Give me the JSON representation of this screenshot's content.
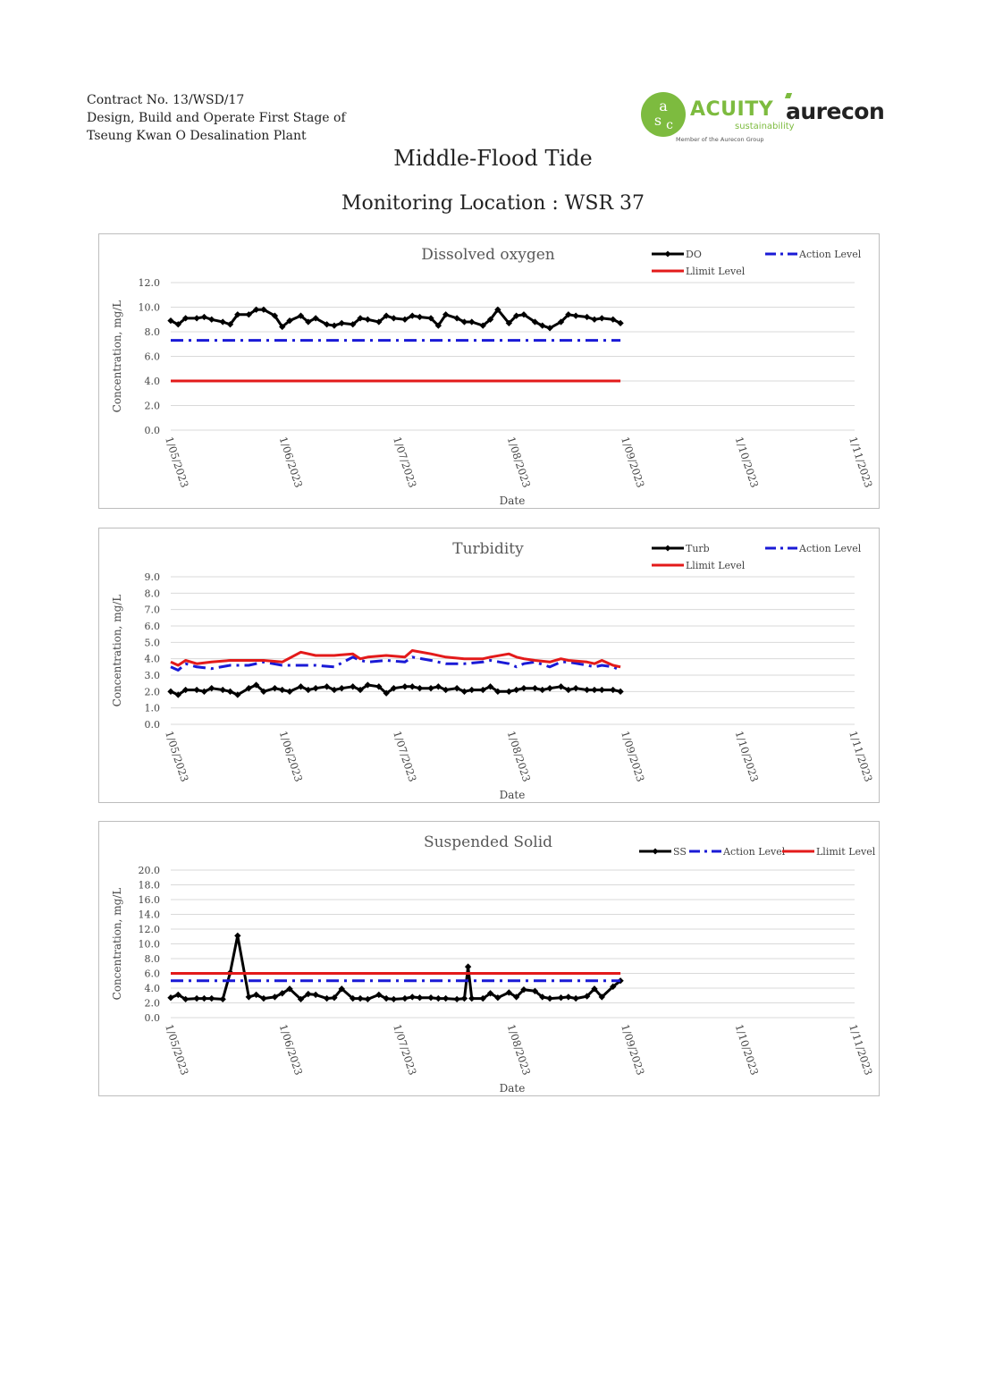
{
  "header": {
    "line1": "Contract No. 13/WSD/17",
    "line2": "Design, Build and Operate First Stage of",
    "line3": "Tseung Kwan O Desalination Plant"
  },
  "logos": {
    "acuity": "ACUITY",
    "acuity_sub": "sustainability",
    "acuity_member": "Member of the Aurecon Group",
    "aurecon": "aurecon",
    "brand_green": "#7dbb3f"
  },
  "title": "Middle-Flood Tide",
  "subtitle": "Monitoring Location : WSR 37",
  "chart_data": [
    {
      "type": "line",
      "title": "Dissolved oxygen",
      "xlabel": "Date",
      "ylabel": "Concentration, mg/L",
      "ylim": [
        0,
        12
      ],
      "yticks": [
        "0.0",
        "2.0",
        "4.0",
        "6.0",
        "8.0",
        "10.0",
        "12.0"
      ],
      "xlim": [
        "2023-05-01",
        "2023-11-01"
      ],
      "xticks": [
        "1/05/2023",
        "1/06/2023",
        "1/07/2023",
        "1/08/2023",
        "1/09/2023",
        "1/10/2023",
        "1/11/2023"
      ],
      "grid": true,
      "legend": "top-right",
      "series": [
        {
          "name": "DO",
          "color": "#000000",
          "style": "solid-marker",
          "x": [
            "2023-05-01",
            "2023-05-03",
            "2023-05-05",
            "2023-05-08",
            "2023-05-10",
            "2023-05-12",
            "2023-05-15",
            "2023-05-17",
            "2023-05-19",
            "2023-05-22",
            "2023-05-24",
            "2023-05-26",
            "2023-05-29",
            "2023-05-31",
            "2023-06-02",
            "2023-06-05",
            "2023-06-07",
            "2023-06-09",
            "2023-06-12",
            "2023-06-14",
            "2023-06-16",
            "2023-06-19",
            "2023-06-21",
            "2023-06-23",
            "2023-06-26",
            "2023-06-28",
            "2023-06-30",
            "2023-07-03",
            "2023-07-05",
            "2023-07-07",
            "2023-07-10",
            "2023-07-12",
            "2023-07-14",
            "2023-07-17",
            "2023-07-19",
            "2023-07-21",
            "2023-07-24",
            "2023-07-26",
            "2023-07-28",
            "2023-07-31",
            "2023-08-02",
            "2023-08-04",
            "2023-08-07",
            "2023-08-09",
            "2023-08-11",
            "2023-08-14",
            "2023-08-16",
            "2023-08-18",
            "2023-08-21",
            "2023-08-23",
            "2023-08-25",
            "2023-08-28",
            "2023-08-30"
          ],
          "values": [
            8.9,
            8.6,
            9.1,
            9.1,
            9.2,
            9.0,
            8.8,
            8.6,
            9.4,
            9.4,
            9.8,
            9.8,
            9.3,
            8.4,
            8.9,
            9.3,
            8.8,
            9.1,
            8.6,
            8.5,
            8.7,
            8.6,
            9.1,
            9.0,
            8.8,
            9.3,
            9.1,
            9.0,
            9.3,
            9.2,
            9.1,
            8.5,
            9.4,
            9.1,
            8.8,
            8.8,
            8.5,
            9.0,
            9.8,
            8.7,
            9.3,
            9.4,
            8.8,
            8.5,
            8.3,
            8.8,
            9.4,
            9.3,
            9.2,
            9.0,
            9.1,
            9.0,
            8.7
          ]
        },
        {
          "name": "Action Level",
          "color": "#1a1ad6",
          "style": "dash-dot",
          "x": [
            "2023-05-01",
            "2023-08-30"
          ],
          "values": [
            7.3,
            7.3
          ]
        },
        {
          "name": "Llimit Level",
          "color": "#e31a1a",
          "style": "solid",
          "x": [
            "2023-05-01",
            "2023-08-30"
          ],
          "values": [
            4.0,
            4.0
          ]
        }
      ]
    },
    {
      "type": "line",
      "title": "Turbidity",
      "xlabel": "Date",
      "ylabel": "Concentration, mg/L",
      "ylim": [
        0,
        9
      ],
      "yticks": [
        "0.0",
        "1.0",
        "2.0",
        "3.0",
        "4.0",
        "5.0",
        "6.0",
        "7.0",
        "8.0",
        "9.0"
      ],
      "xlim": [
        "2023-05-01",
        "2023-11-01"
      ],
      "xticks": [
        "1/05/2023",
        "1/06/2023",
        "1/07/2023",
        "1/08/2023",
        "1/09/2023",
        "1/10/2023",
        "1/11/2023"
      ],
      "grid": true,
      "legend": "top-right",
      "series": [
        {
          "name": "Turb",
          "color": "#000000",
          "style": "solid-marker",
          "x": [
            "2023-05-01",
            "2023-05-03",
            "2023-05-05",
            "2023-05-08",
            "2023-05-10",
            "2023-05-12",
            "2023-05-15",
            "2023-05-17",
            "2023-05-19",
            "2023-05-22",
            "2023-05-24",
            "2023-05-26",
            "2023-05-29",
            "2023-05-31",
            "2023-06-02",
            "2023-06-05",
            "2023-06-07",
            "2023-06-09",
            "2023-06-12",
            "2023-06-14",
            "2023-06-16",
            "2023-06-19",
            "2023-06-21",
            "2023-06-23",
            "2023-06-26",
            "2023-06-28",
            "2023-06-30",
            "2023-07-03",
            "2023-07-05",
            "2023-07-07",
            "2023-07-10",
            "2023-07-12",
            "2023-07-14",
            "2023-07-17",
            "2023-07-19",
            "2023-07-21",
            "2023-07-24",
            "2023-07-26",
            "2023-07-28",
            "2023-07-31",
            "2023-08-02",
            "2023-08-04",
            "2023-08-07",
            "2023-08-09",
            "2023-08-11",
            "2023-08-14",
            "2023-08-16",
            "2023-08-18",
            "2023-08-21",
            "2023-08-23",
            "2023-08-25",
            "2023-08-28",
            "2023-08-30"
          ],
          "values": [
            2.0,
            1.8,
            2.1,
            2.1,
            2.0,
            2.2,
            2.1,
            2.0,
            1.8,
            2.2,
            2.4,
            2.0,
            2.2,
            2.1,
            2.0,
            2.3,
            2.1,
            2.2,
            2.3,
            2.1,
            2.2,
            2.3,
            2.1,
            2.4,
            2.3,
            1.9,
            2.2,
            2.3,
            2.3,
            2.2,
            2.2,
            2.3,
            2.1,
            2.2,
            2.0,
            2.1,
            2.1,
            2.3,
            2.0,
            2.0,
            2.1,
            2.2,
            2.2,
            2.1,
            2.2,
            2.3,
            2.1,
            2.2,
            2.1,
            2.1,
            2.1,
            2.1,
            2.0
          ]
        },
        {
          "name": "Action Level",
          "color": "#1a1ad6",
          "style": "dash-dot",
          "x": [
            "2023-05-01",
            "2023-05-03",
            "2023-05-05",
            "2023-05-08",
            "2023-05-12",
            "2023-05-17",
            "2023-05-22",
            "2023-05-26",
            "2023-05-31",
            "2023-06-05",
            "2023-06-09",
            "2023-06-14",
            "2023-06-19",
            "2023-06-21",
            "2023-06-23",
            "2023-06-28",
            "2023-07-03",
            "2023-07-05",
            "2023-07-10",
            "2023-07-14",
            "2023-07-19",
            "2023-07-24",
            "2023-07-26",
            "2023-07-31",
            "2023-08-02",
            "2023-08-04",
            "2023-08-07",
            "2023-08-11",
            "2023-08-14",
            "2023-08-16",
            "2023-08-21",
            "2023-08-23",
            "2023-08-25",
            "2023-08-28",
            "2023-08-30"
          ],
          "values": [
            3.5,
            3.3,
            3.7,
            3.5,
            3.4,
            3.6,
            3.6,
            3.8,
            3.6,
            3.6,
            3.6,
            3.5,
            4.1,
            3.9,
            3.8,
            3.9,
            3.8,
            4.1,
            3.9,
            3.7,
            3.7,
            3.8,
            3.9,
            3.7,
            3.5,
            3.7,
            3.8,
            3.5,
            3.8,
            3.8,
            3.6,
            3.5,
            3.6,
            3.5,
            3.3
          ]
        },
        {
          "name": "Llimit Level",
          "color": "#e31a1a",
          "style": "solid",
          "x": [
            "2023-05-01",
            "2023-05-03",
            "2023-05-05",
            "2023-05-08",
            "2023-05-12",
            "2023-05-17",
            "2023-05-22",
            "2023-05-26",
            "2023-05-31",
            "2023-06-05",
            "2023-06-09",
            "2023-06-14",
            "2023-06-19",
            "2023-06-21",
            "2023-06-23",
            "2023-06-28",
            "2023-07-03",
            "2023-07-05",
            "2023-07-10",
            "2023-07-14",
            "2023-07-19",
            "2023-07-24",
            "2023-07-26",
            "2023-07-31",
            "2023-08-02",
            "2023-08-04",
            "2023-08-07",
            "2023-08-11",
            "2023-08-14",
            "2023-08-16",
            "2023-08-21",
            "2023-08-23",
            "2023-08-25",
            "2023-08-28",
            "2023-08-30"
          ],
          "values": [
            3.8,
            3.6,
            3.9,
            3.7,
            3.8,
            3.9,
            3.9,
            3.9,
            3.8,
            4.4,
            4.2,
            4.2,
            4.3,
            4.0,
            4.1,
            4.2,
            4.1,
            4.5,
            4.3,
            4.1,
            4.0,
            4.0,
            4.1,
            4.3,
            4.1,
            4.0,
            3.9,
            3.8,
            4.0,
            3.9,
            3.8,
            3.7,
            3.9,
            3.6,
            3.5
          ]
        }
      ]
    },
    {
      "type": "line",
      "title": "Suspended Solid",
      "xlabel": "Date",
      "ylabel": "Concentration, mg/L",
      "ylim": [
        0,
        20
      ],
      "yticks": [
        "0.0",
        "2.0",
        "4.0",
        "6.0",
        "8.0",
        "10.0",
        "12.0",
        "14.0",
        "16.0",
        "18.0",
        "20.0"
      ],
      "xlim": [
        "2023-05-01",
        "2023-11-01"
      ],
      "xticks": [
        "1/05/2023",
        "1/06/2023",
        "1/07/2023",
        "1/08/2023",
        "1/09/2023",
        "1/10/2023",
        "1/11/2023"
      ],
      "grid": true,
      "legend": "top-right",
      "series": [
        {
          "name": "SS",
          "color": "#000000",
          "style": "solid-marker",
          "x": [
            "2023-05-01",
            "2023-05-03",
            "2023-05-05",
            "2023-05-08",
            "2023-05-10",
            "2023-05-12",
            "2023-05-15",
            "2023-05-17",
            "2023-05-19",
            "2023-05-22",
            "2023-05-24",
            "2023-05-26",
            "2023-05-29",
            "2023-05-31",
            "2023-06-02",
            "2023-06-05",
            "2023-06-07",
            "2023-06-09",
            "2023-06-12",
            "2023-06-14",
            "2023-06-16",
            "2023-06-19",
            "2023-06-21",
            "2023-06-23",
            "2023-06-26",
            "2023-06-28",
            "2023-06-30",
            "2023-07-03",
            "2023-07-05",
            "2023-07-07",
            "2023-07-10",
            "2023-07-12",
            "2023-07-14",
            "2023-07-17",
            "2023-07-19",
            "2023-07-20",
            "2023-07-21",
            "2023-07-24",
            "2023-07-26",
            "2023-07-28",
            "2023-07-31",
            "2023-08-02",
            "2023-08-04",
            "2023-08-07",
            "2023-08-09",
            "2023-08-11",
            "2023-08-14",
            "2023-08-16",
            "2023-08-18",
            "2023-08-21",
            "2023-08-23",
            "2023-08-25",
            "2023-08-28",
            "2023-08-30"
          ],
          "values": [
            2.7,
            3.1,
            2.5,
            2.6,
            2.6,
            2.6,
            2.5,
            6.1,
            11.1,
            2.8,
            3.1,
            2.6,
            2.8,
            3.3,
            3.9,
            2.5,
            3.2,
            3.1,
            2.6,
            2.7,
            3.9,
            2.6,
            2.6,
            2.5,
            3.1,
            2.6,
            2.5,
            2.6,
            2.8,
            2.7,
            2.7,
            2.6,
            2.6,
            2.5,
            2.6,
            6.9,
            2.6,
            2.6,
            3.3,
            2.7,
            3.4,
            2.8,
            3.8,
            3.6,
            2.8,
            2.6,
            2.7,
            2.8,
            2.6,
            2.9,
            3.9,
            2.8,
            4.2,
            5.0
          ]
        },
        {
          "name": "Action Level",
          "color": "#1a1ad6",
          "style": "dash-dot",
          "x": [
            "2023-05-01",
            "2023-08-30"
          ],
          "values": [
            5.0,
            5.0
          ]
        },
        {
          "name": "Llimit Level",
          "color": "#e31a1a",
          "style": "solid",
          "x": [
            "2023-05-01",
            "2023-08-30"
          ],
          "values": [
            6.0,
            6.0
          ]
        }
      ]
    }
  ]
}
